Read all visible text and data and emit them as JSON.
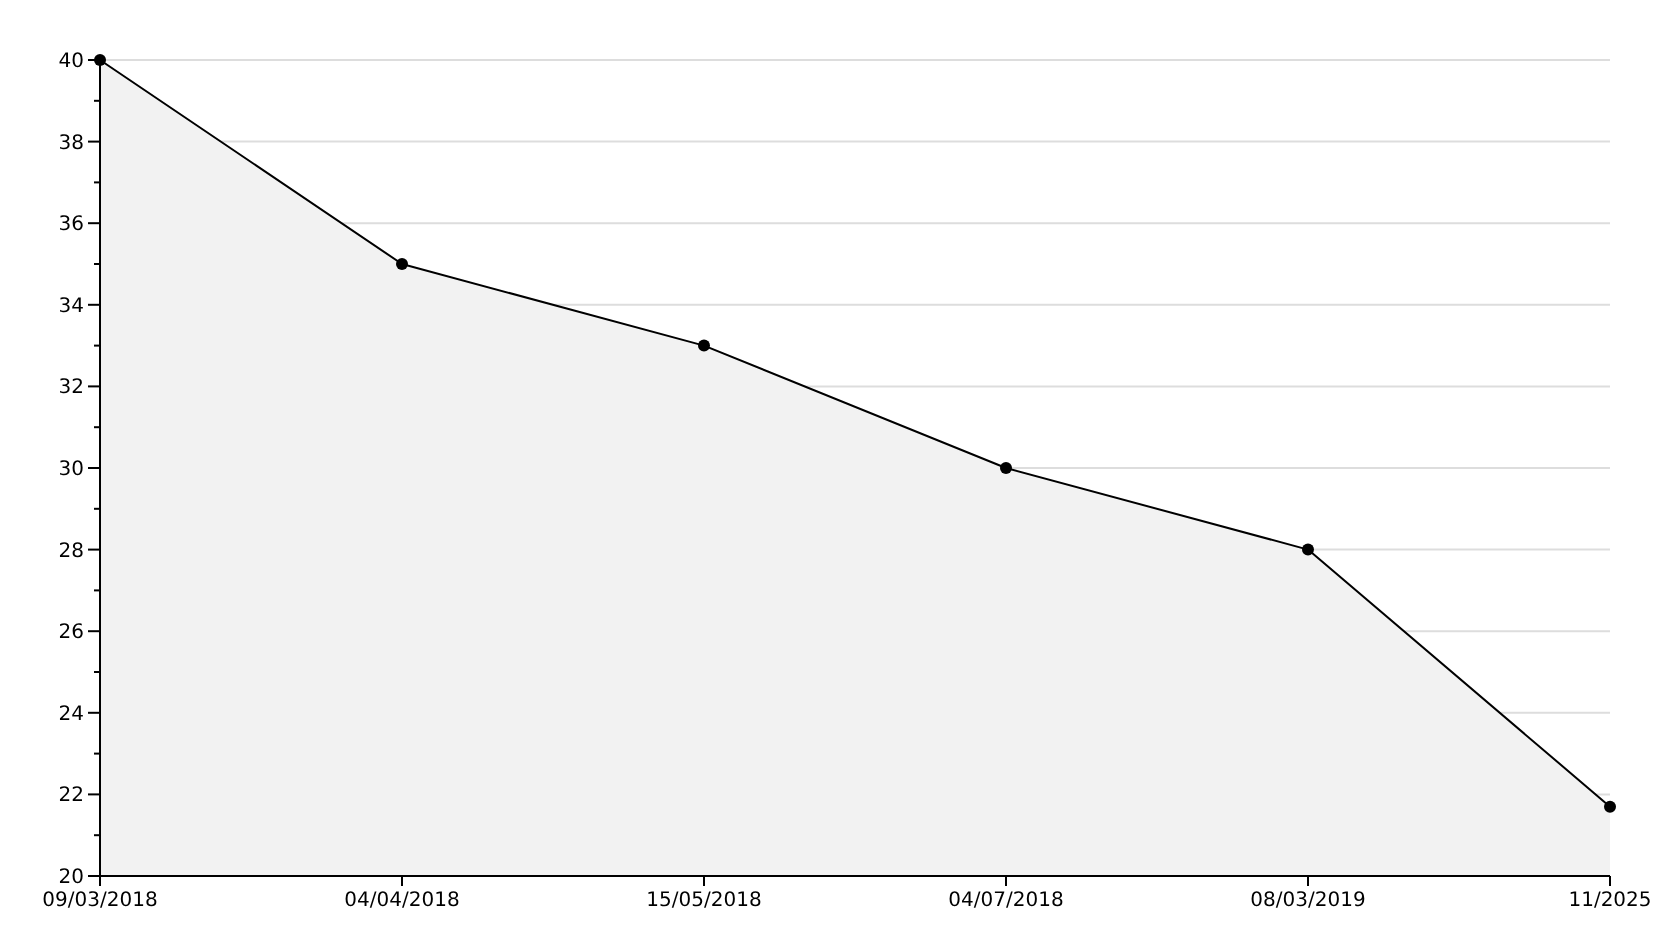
{
  "chart_data": {
    "type": "area",
    "categories": [
      "09/03/2018",
      "04/04/2018",
      "15/05/2018",
      "04/07/2018",
      "08/03/2019",
      "11/2025"
    ],
    "series": [
      {
        "color": "#000000",
        "values": [
          40,
          35,
          33,
          30,
          28,
          21.7
        ]
      }
    ],
    "ylim": [
      20,
      40
    ],
    "yticks": [
      20,
      {
        "value": 21,
        "label": null
      },
      22,
      {
        "value": 23,
        "label": null
      },
      24,
      {
        "value": 25,
        "label": null
      },
      26,
      {
        "value": 27,
        "label": null
      },
      28,
      {
        "value": 29,
        "label": null
      },
      30,
      {
        "value": 31,
        "label": null
      },
      32,
      {
        "value": 33,
        "label": null
      },
      34,
      {
        "value": 35,
        "label": null
      },
      36,
      {
        "value": 37,
        "label": null
      },
      38,
      {
        "value": 39,
        "label": null
      },
      40
    ],
    "grid": "y",
    "marker": "circle"
  }
}
